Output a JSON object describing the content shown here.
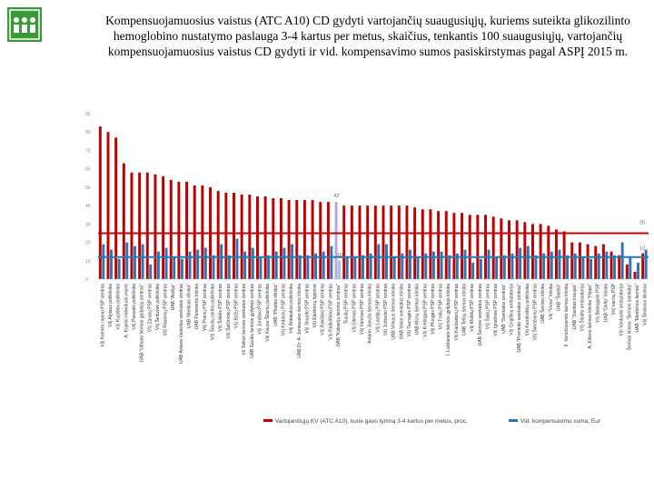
{
  "chart_data": {
    "type": "bar",
    "title": "Kompensuojamuosius vaistus (ATC A10) CD gydyti vartojančių suaugusiųjų, kuriems suteikta glikozilinto hemoglobino nustatymo paslauga 3-4 kartus per metus, skaičius, tenkantis 100 suaugusiųjų, vartojančių kompensuojamuosius vaistus CD gydyti ir vid. kompensavimo sumos pasiskirstymas pagal ASPĮ 2015 m.",
    "categories": [
      "VšĮ Kelmės rajono PSP centras",
      "VšĮ Alytaus poliklinika",
      "VšĮ Kupiškio poliklinika",
      "A. Kojelio individuali įmonė",
      "VšĮ Pasvalio poliklinika",
      "UAB \"Ulbono šeimos gydytojų centras\"",
      "VšĮ Zarasų PSP centras",
      "VšĮ Šeduvos poliklinika",
      "VšĮ Raseinių PSP centras",
      "UAB \"Alvilija\"",
      "UAB Antano Vaišvilos sveikatos centras",
      "UAB \"Medicas klinika\"",
      "UAB Panevėžio klinika",
      "VšĮ Prienų PSP centras",
      "VšĮ Šiaulių centro poliklinika",
      "VšĮ Šilalės PSP centras",
      "VšĮ Šalčininkų PSP centras",
      "VšĮ Biržų PSP centras",
      "Vš Taikos šeimos sveikatos centras",
      "UAB Saulės šeimos gydytojo centras",
      "VšĮ Joniškio PSP centras",
      "VšĮ Kauno Šilainių poliklinika",
      "UAB \"Pilaitės klinika\"",
      "VšĮ Kėdainių PSP centras",
      "VšĮ Antakalnio poliklinika",
      "UAB Dr. A. Jankausko šeimos klinika",
      "VšĮ Skuodo PSP centras",
      "VšĮ Elektrėnų ligoninė",
      "VšĮ Rokiškio PSP centras",
      "VšĮ Radviliškio PSP centras",
      "UAB \"Kalvarijų šeimos centras\"",
      "Šiaulių PSP centras",
      "VšĮ Utenos PSP centras",
      "VšĮ Varėnos PSP centras",
      "Antano Jonušo šeimos klinika",
      "VšĮ Lazdijų PSP centras",
      "VšĮ Jurbarko PSP centras",
      "UAB Vilniaus šeimos klinika",
      "UAB Vaiko sveikatos klinika",
      "VšĮ Tauragės PSP centras",
      "UAB Mūsų šeimos klinika",
      "VšĮ Kretingos PSP centras",
      "VšĮ Plungės PSP centras",
      "VšĮ Trakų PSP centras",
      "I. Lukšienės šeimos gydytojo klinika",
      "VšĮ Kaišiadorių PSP centras",
      "UAB Telšių šeimos klinika",
      "VšĮ Molėtų PSP centras",
      "UAB Šeimos sveikatos centras",
      "VšĮ Šakių PSP centras",
      "VšĮ Ignalinos PSP centras",
      "UAB \"Sveikatos centras\"",
      "VšĮ Grigiškių ambulatorija",
      "UAB \"Pramedo sveikatos centras\"",
      "VšĮ Karoliniškių poliklinika",
      "VšĮ Švenčionių PSP centras",
      "UAB Šeimos klinika",
      "VšĮ \"Vivus\" klinika",
      "UAB \"Šlaitas\"",
      "II. Venckūnienės šeimos klinika",
      "UAB \"Sveikas kraujas\"",
      "VšĮ Šilutės ambulatorija",
      "A. Kiliono šeimos klinika \"Hippo\"",
      "VšĮ Balsogalio PSP",
      "UAB \"Delta\" klinika",
      "VšĮ Varnių PSP",
      "VšĮ Vantuolis ambulatorija",
      "Šeimos klinika \"Šeimos sveikata\"",
      "UAB \"Medicinos šeimai\"",
      "VšĮ Šeduvos klinikos"
    ],
    "series": [
      {
        "name": "Vartojančiųjų KV (ATC A10), kurie gavo tyrimą 3-4 kartus per metus, proc.",
        "color": "#c00000",
        "values": [
          83,
          80,
          77,
          63,
          58,
          58,
          58,
          57,
          56,
          54,
          53,
          53,
          51,
          51,
          50,
          48,
          47,
          47,
          46,
          46,
          45,
          45,
          44,
          44,
          43,
          43,
          43,
          43,
          42,
          42,
          42,
          40,
          40,
          40,
          40,
          40,
          40,
          40,
          40,
          40,
          39,
          38,
          38,
          37,
          37,
          36,
          36,
          35,
          35,
          35,
          34,
          33,
          32,
          32,
          31,
          30,
          30,
          29,
          27,
          26,
          20,
          20,
          19,
          18,
          19,
          15,
          13,
          8,
          4,
          14
        ]
      },
      {
        "name": "Vid. kompensavimo suma, Eur",
        "color": "#2e75b6",
        "values": [
          19,
          16,
          11,
          20,
          18,
          19,
          8,
          15,
          17,
          12,
          11,
          15,
          16,
          17,
          13,
          19,
          13,
          22,
          15,
          17,
          12,
          13,
          15,
          17,
          19,
          13,
          13,
          14,
          15,
          18,
          10,
          12,
          12,
          13,
          14,
          19,
          19,
          12,
          14,
          16,
          12,
          14,
          15,
          15,
          13,
          14,
          16,
          9,
          11,
          16,
          12,
          13,
          14,
          17,
          18,
          13,
          14,
          15,
          16,
          13,
          14,
          12,
          11,
          14,
          15,
          13,
          20,
          12,
          9,
          16
        ]
      }
    ],
    "hlines": [
      {
        "value": 25,
        "color": "#c00000"
      },
      {
        "value": 12,
        "color": "#2e75b6"
      }
    ],
    "highlight": 30,
    "ylim": [
      0,
      90
    ],
    "yticks": [
      0,
      10,
      20,
      30,
      40,
      50,
      60,
      70,
      80,
      90
    ],
    "grid": false
  }
}
